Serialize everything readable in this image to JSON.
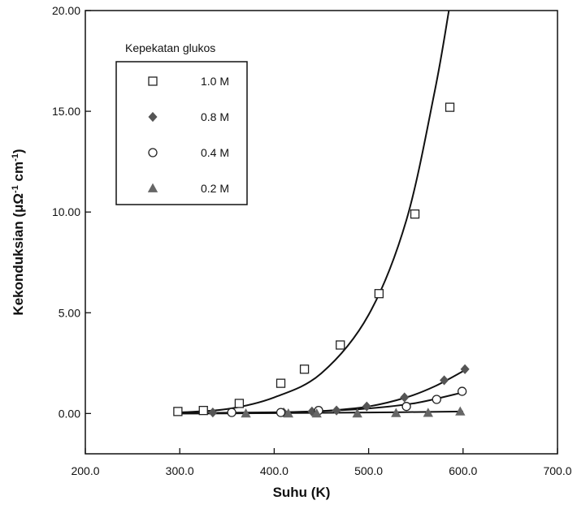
{
  "chart_data": {
    "type": "scatter",
    "xlabel": "Suhu  (K)",
    "ylabel": "Kekonduksian (μΩ",
    "ylabel_sup1": "-1",
    "ylabel_mid": " cm",
    "ylabel_sup2": "-1",
    "ylabel_end": ")",
    "xlim": [
      200,
      700
    ],
    "ylim": [
      -2,
      20
    ],
    "x_ticks": [
      200,
      300,
      400,
      500,
      600,
      700
    ],
    "x_tick_labels": [
      "200.0",
      "300.0",
      "400.0",
      "500.0",
      "600.0",
      "700.0"
    ],
    "y_ticks": [
      0,
      5,
      10,
      15,
      20
    ],
    "y_tick_labels": [
      "0.00",
      "5.00",
      "10.00",
      "15.00",
      "20.00"
    ],
    "grid": false,
    "legend": {
      "title": "Kepekatan glukos",
      "placement": "top-left"
    },
    "series": [
      {
        "name": "1.0 M",
        "marker": "open-square",
        "color": "#222222",
        "x": [
          298,
          325,
          363,
          407,
          432,
          470,
          511,
          549,
          586
        ],
        "y": [
          0.1,
          0.15,
          0.5,
          1.5,
          2.2,
          3.4,
          5.95,
          9.9,
          15.2
        ],
        "fit": [
          [
            298,
            0.05
          ],
          [
            350,
            0.22
          ],
          [
            400,
            0.8
          ],
          [
            450,
            2.0
          ],
          [
            500,
            4.9
          ],
          [
            540,
            9.6
          ],
          [
            570,
            16.0
          ],
          [
            585,
            20.0
          ]
        ]
      },
      {
        "name": "0.8 M",
        "marker": "filled-diamond",
        "color": "#555555",
        "x": [
          335,
          410,
          440,
          466,
          498,
          538,
          580,
          602
        ],
        "y": [
          0.05,
          0.05,
          0.1,
          0.15,
          0.35,
          0.8,
          1.65,
          2.2
        ],
        "fit": [
          [
            300,
            0.0
          ],
          [
            400,
            0.03
          ],
          [
            450,
            0.12
          ],
          [
            500,
            0.35
          ],
          [
            540,
            0.8
          ],
          [
            570,
            1.35
          ],
          [
            600,
            2.1
          ]
        ]
      },
      {
        "name": "0.4 M",
        "marker": "open-circle",
        "color": "#222222",
        "x": [
          355,
          407,
          447,
          540,
          572,
          599
        ],
        "y": [
          0.05,
          0.05,
          0.15,
          0.35,
          0.7,
          1.1
        ],
        "fit": [
          [
            300,
            0.02
          ],
          [
            400,
            0.06
          ],
          [
            450,
            0.12
          ],
          [
            500,
            0.25
          ],
          [
            550,
            0.52
          ],
          [
            600,
            1.05
          ]
        ]
      },
      {
        "name": "0.2 M",
        "marker": "filled-triangle",
        "color": "#666666",
        "x": [
          370,
          415,
          445,
          488,
          529,
          563,
          597
        ],
        "y": [
          0.0,
          0.0,
          0.0,
          0.0,
          0.02,
          0.03,
          0.1
        ],
        "fit": [
          [
            300,
            0.0
          ],
          [
            400,
            0.02
          ],
          [
            500,
            0.05
          ],
          [
            600,
            0.1
          ]
        ]
      }
    ]
  }
}
